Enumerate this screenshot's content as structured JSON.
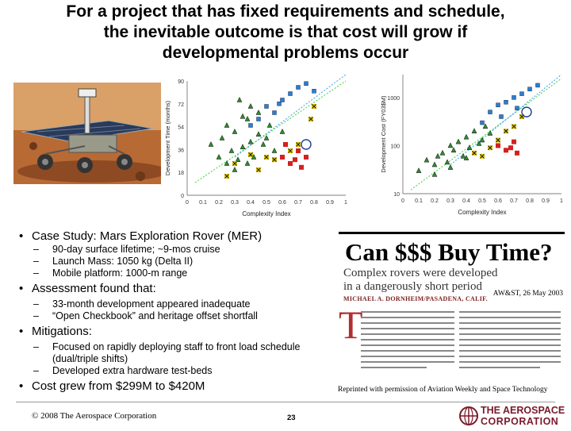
{
  "title": {
    "line1": "For a project that has fixed requirements and schedule,",
    "line2": "the inevitable outcome is that cost will grow if",
    "line3": "developmental problems occur"
  },
  "chart_data": [
    {
      "type": "scatter",
      "ylabel": "Development Time (months)",
      "xlabel": "Complexity Index",
      "xlim": [
        0,
        1
      ],
      "x_ticks": [
        "0",
        "0.1",
        "0.2",
        "0.3",
        "0.4",
        "0.5",
        "0.6",
        "0.7",
        "0.8",
        "0.9",
        "1"
      ],
      "y_ticks": [
        "0",
        "18",
        "36",
        "54",
        "72",
        "90"
      ],
      "ylim": [
        0,
        90
      ],
      "grid": false,
      "series": [
        {
          "marker": "green-triangle",
          "x": [
            0.15,
            0.2,
            0.22,
            0.25,
            0.28,
            0.3,
            0.32,
            0.35,
            0.38,
            0.4,
            0.42,
            0.45,
            0.3,
            0.35,
            0.4,
            0.25,
            0.5,
            0.55,
            0.45,
            0.33,
            0.48,
            0.52,
            0.6,
            0.38
          ],
          "y": [
            40,
            30,
            45,
            25,
            35,
            50,
            28,
            38,
            60,
            42,
            30,
            48,
            20,
            62,
            70,
            55,
            45,
            35,
            65,
            75,
            40,
            55,
            50,
            25
          ]
        },
        {
          "marker": "blue-square",
          "x": [
            0.4,
            0.45,
            0.5,
            0.55,
            0.6,
            0.65,
            0.7,
            0.75,
            0.8,
            0.58
          ],
          "y": [
            55,
            60,
            70,
            65,
            75,
            80,
            85,
            88,
            82,
            72
          ]
        },
        {
          "marker": "red-square",
          "x": [
            0.6,
            0.65,
            0.7,
            0.75,
            0.62,
            0.68,
            0.72
          ],
          "y": [
            30,
            25,
            35,
            30,
            40,
            28,
            22
          ]
        },
        {
          "marker": "yellow-x",
          "x": [
            0.3,
            0.45,
            0.55,
            0.65,
            0.7,
            0.78,
            0.8,
            0.4,
            0.5,
            0.25
          ],
          "y": [
            25,
            20,
            28,
            35,
            40,
            60,
            70,
            32,
            30,
            15
          ]
        }
      ],
      "highlight": {
        "marker": "circle",
        "x": 0.75,
        "y": 40
      }
    },
    {
      "type": "scatter",
      "ylabel": "Development Cost (FY03$M)",
      "xlabel": "Complexity Index",
      "xlim": [
        0,
        1
      ],
      "ylog": true,
      "x_ticks": [
        "0",
        "0.1",
        "0.2",
        "0.3",
        "0.4",
        "0.5",
        "0.6",
        "0.7",
        "0.8",
        "0.9",
        "1"
      ],
      "y_ticks": [
        "10",
        "100",
        "1000"
      ],
      "ylim": [
        10,
        3000
      ],
      "grid": false,
      "series": [
        {
          "marker": "green-triangle",
          "x": [
            0.1,
            0.15,
            0.2,
            0.22,
            0.25,
            0.28,
            0.3,
            0.32,
            0.35,
            0.38,
            0.4,
            0.42,
            0.45,
            0.48,
            0.5,
            0.52,
            0.55,
            0.2,
            0.3,
            0.4
          ],
          "y": [
            30,
            50,
            40,
            60,
            70,
            45,
            100,
            80,
            120,
            60,
            150,
            90,
            200,
            110,
            130,
            250,
            180,
            25,
            35,
            55
          ]
        },
        {
          "marker": "blue-square",
          "x": [
            0.5,
            0.55,
            0.6,
            0.65,
            0.7,
            0.75,
            0.8,
            0.85,
            0.62,
            0.72
          ],
          "y": [
            300,
            500,
            700,
            800,
            1000,
            1200,
            1500,
            1800,
            400,
            600
          ]
        },
        {
          "marker": "red-square",
          "x": [
            0.6,
            0.65,
            0.7,
            0.68,
            0.72
          ],
          "y": [
            100,
            80,
            120,
            90,
            70
          ]
        },
        {
          "marker": "yellow-x",
          "x": [
            0.5,
            0.55,
            0.6,
            0.65,
            0.7,
            0.75,
            0.45
          ],
          "y": [
            60,
            90,
            130,
            200,
            250,
            400,
            70
          ]
        }
      ],
      "highlight": {
        "marker": "circle",
        "x": 0.78,
        "y": 500
      }
    }
  ],
  "bullets": [
    {
      "text": "Case Study: Mars Exploration Rover (MER)",
      "sub": [
        "90-day surface lifetime; ~9-mos cruise",
        "Launch Mass: 1050 kg (Delta II)",
        "Mobile platform: 1000-m range"
      ]
    },
    {
      "text": "Assessment found that:",
      "sub": [
        "33-month development appeared inadequate",
        "“Open Checkbook” and heritage offset shortfall"
      ]
    },
    {
      "text": "Mitigations:",
      "sub": [
        "Focused on rapidly deploying staff to front load schedule (dual/triple shifts)",
        "Developed extra hardware test-beds"
      ]
    },
    {
      "text": "Cost grew from $299M to $420M",
      "sub": []
    }
  ],
  "clipping": {
    "headline": "Can $$$ Buy Time?",
    "subhead_line1": "Complex rovers were developed",
    "subhead_line2": "in a dangerously short period",
    "byline": "MICHAEL A. DORNHEIM/PASADENA, CALIF.",
    "date": "AW&ST, 26 May 2003",
    "dropcap": "T"
  },
  "credit": "Reprinted with permission of Aviation Weekly and Space Technology",
  "footer": {
    "copyright": "© 2008 The Aerospace Corporation",
    "page_number": "23",
    "logo_line1": "THE AEROSPACE",
    "logo_line2": "CORPORATION"
  },
  "colors": {
    "title": "#000000",
    "triangle": "#2e8b2e",
    "square_blue": "#2a7fcf",
    "square_red": "#d42020",
    "x_yellow": "#d8c200",
    "trend_green": "#3ccf3c",
    "trend_blue": "#3aa0e8",
    "logo": "#7a1a2a"
  }
}
